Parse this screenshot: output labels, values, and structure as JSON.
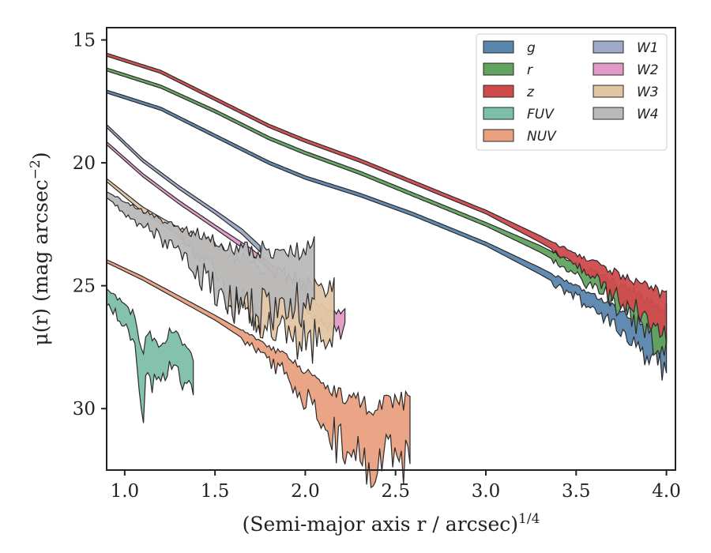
{
  "chart_data": {
    "type": "area",
    "xlabel": "(Semi-major axis r / arcsec)",
    "xlabel_exponent": "1/4",
    "ylabel": "μ(r) (mag arcsec",
    "ylabel_exponent": "−2",
    "ylabel_close": ")",
    "xlim": [
      0.9,
      4.05
    ],
    "ylim": [
      32.5,
      14.5
    ],
    "y_inverted": true,
    "x_ticks": [
      1.0,
      1.5,
      2.0,
      2.5,
      3.0,
      3.5,
      4.0
    ],
    "x_tick_labels": [
      "1.0",
      "1.5",
      "2.0",
      "2.5",
      "3.0",
      "3.5",
      "4.0"
    ],
    "y_ticks": [
      15,
      20,
      25,
      30
    ],
    "y_tick_labels": [
      "15",
      "20",
      "25",
      "30"
    ],
    "grid": false,
    "legend_position": "top-right",
    "series": [
      {
        "name": "g",
        "color": "#5a85ad",
        "points": [
          [
            0.9,
            17.1
          ],
          [
            1.2,
            17.8
          ],
          [
            1.5,
            18.9
          ],
          [
            1.8,
            20.0
          ],
          [
            2.0,
            20.6
          ],
          [
            2.3,
            21.3
          ],
          [
            2.6,
            22.1
          ],
          [
            3.0,
            23.3
          ],
          [
            3.3,
            24.4
          ],
          [
            3.6,
            25.6
          ],
          [
            3.8,
            26.6
          ],
          [
            4.0,
            27.5
          ]
        ],
        "width": [
          [
            0.9,
            0.12
          ],
          [
            3.0,
            0.15
          ],
          [
            3.5,
            0.35
          ],
          [
            3.8,
            0.7
          ],
          [
            4.0,
            1.2
          ]
        ]
      },
      {
        "name": "r",
        "color": "#61a35f",
        "points": [
          [
            0.9,
            16.2
          ],
          [
            1.2,
            16.9
          ],
          [
            1.5,
            17.9
          ],
          [
            1.8,
            19.0
          ],
          [
            2.0,
            19.6
          ],
          [
            2.3,
            20.4
          ],
          [
            2.6,
            21.3
          ],
          [
            3.0,
            22.5
          ],
          [
            3.3,
            23.5
          ],
          [
            3.6,
            24.7
          ],
          [
            3.8,
            25.6
          ],
          [
            4.0,
            26.7
          ]
        ],
        "width": [
          [
            0.9,
            0.12
          ],
          [
            3.0,
            0.15
          ],
          [
            3.5,
            0.35
          ],
          [
            3.8,
            0.8
          ],
          [
            4.0,
            1.4
          ]
        ]
      },
      {
        "name": "z",
        "color": "#d04a4c",
        "points": [
          [
            0.9,
            15.6
          ],
          [
            1.2,
            16.3
          ],
          [
            1.5,
            17.4
          ],
          [
            1.8,
            18.5
          ],
          [
            2.0,
            19.1
          ],
          [
            2.3,
            19.9
          ],
          [
            2.6,
            20.8
          ],
          [
            3.0,
            22.0
          ],
          [
            3.3,
            23.1
          ],
          [
            3.6,
            24.3
          ],
          [
            3.8,
            25.2
          ],
          [
            4.0,
            26.2
          ]
        ],
        "width": [
          [
            0.9,
            0.12
          ],
          [
            3.0,
            0.15
          ],
          [
            3.5,
            0.35
          ],
          [
            3.8,
            0.9
          ],
          [
            4.0,
            1.5
          ]
        ]
      },
      {
        "name": "FUV",
        "color": "#7dbfa9",
        "points": [
          [
            0.9,
            25.4
          ],
          [
            1.0,
            26.2
          ],
          [
            1.05,
            26.6
          ],
          [
            1.1,
            28.3
          ],
          [
            1.15,
            27.6
          ],
          [
            1.2,
            28.0
          ],
          [
            1.25,
            27.3
          ],
          [
            1.3,
            27.5
          ],
          [
            1.35,
            28.1
          ],
          [
            1.38,
            28.6
          ]
        ],
        "width": [
          [
            0.9,
            0.5
          ],
          [
            1.05,
            0.9
          ],
          [
            1.1,
            1.6
          ],
          [
            1.2,
            1.0
          ],
          [
            1.38,
            1.2
          ]
        ]
      },
      {
        "name": "NUV",
        "color": "#e9a07f",
        "points": [
          [
            0.9,
            24.0
          ],
          [
            1.1,
            24.7
          ],
          [
            1.3,
            25.5
          ],
          [
            1.5,
            26.3
          ],
          [
            1.7,
            27.2
          ],
          [
            1.9,
            28.2
          ],
          [
            2.05,
            29.3
          ],
          [
            2.2,
            30.2
          ],
          [
            2.35,
            30.8
          ],
          [
            2.5,
            30.7
          ],
          [
            2.58,
            30.5
          ]
        ],
        "width": [
          [
            0.9,
            0.12
          ],
          [
            1.5,
            0.2
          ],
          [
            1.8,
            0.4
          ],
          [
            2.0,
            0.9
          ],
          [
            2.2,
            1.6
          ],
          [
            2.4,
            1.8
          ],
          [
            2.58,
            1.8
          ]
        ]
      },
      {
        "name": "W1",
        "color": "#9eaac8",
        "points": [
          [
            0.9,
            18.5
          ],
          [
            1.1,
            19.9
          ],
          [
            1.3,
            21.0
          ],
          [
            1.5,
            22.0
          ],
          [
            1.65,
            22.8
          ],
          [
            1.75,
            23.5
          ]
        ],
        "width": [
          [
            0.9,
            0.12
          ],
          [
            1.5,
            0.15
          ],
          [
            1.75,
            0.25
          ]
        ]
      },
      {
        "name": "W2",
        "color": "#e09ac6",
        "points": [
          [
            0.9,
            19.2
          ],
          [
            1.1,
            20.5
          ],
          [
            1.3,
            21.6
          ],
          [
            1.5,
            22.6
          ],
          [
            1.7,
            23.6
          ],
          [
            1.9,
            24.8
          ],
          [
            2.05,
            25.9
          ],
          [
            2.15,
            26.4
          ],
          [
            2.22,
            26.3
          ]
        ],
        "width": [
          [
            0.9,
            0.12
          ],
          [
            1.5,
            0.15
          ],
          [
            1.9,
            0.3
          ],
          [
            2.05,
            0.5
          ],
          [
            2.22,
            0.6
          ]
        ]
      },
      {
        "name": "W3",
        "color": "#e1c6a4",
        "points": [
          [
            0.9,
            20.7
          ],
          [
            1.1,
            21.9
          ],
          [
            1.3,
            22.8
          ],
          [
            1.5,
            23.7
          ],
          [
            1.6,
            24.6
          ],
          [
            1.8,
            25.3
          ],
          [
            2.0,
            25.8
          ],
          [
            2.1,
            26.0
          ],
          [
            2.16,
            25.8
          ]
        ],
        "width": [
          [
            0.9,
            0.12
          ],
          [
            1.3,
            0.3
          ],
          [
            1.5,
            0.8
          ],
          [
            1.6,
            1.6
          ],
          [
            1.8,
            1.8
          ],
          [
            2.16,
            1.7
          ]
        ]
      },
      {
        "name": "W4",
        "color": "#b9b9b9",
        "points": [
          [
            0.9,
            21.3
          ],
          [
            1.1,
            22.2
          ],
          [
            1.3,
            23.0
          ],
          [
            1.45,
            23.7
          ],
          [
            1.6,
            24.2
          ],
          [
            1.8,
            24.5
          ],
          [
            2.0,
            24.5
          ],
          [
            2.05,
            24.3
          ]
        ],
        "width": [
          [
            0.9,
            0.25
          ],
          [
            1.3,
            0.7
          ],
          [
            1.4,
            1.2
          ],
          [
            1.6,
            1.6
          ],
          [
            1.8,
            1.8
          ],
          [
            2.05,
            1.9
          ]
        ]
      }
    ]
  }
}
